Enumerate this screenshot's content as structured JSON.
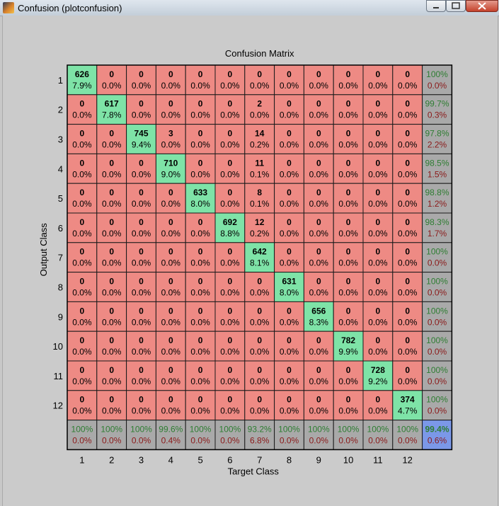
{
  "window": {
    "title": "Confusion (plotconfusion)",
    "buttons": [
      "minimize",
      "maximize",
      "close"
    ]
  },
  "colors": {
    "correct": "#7ee3a7",
    "incorrect": "#ee8a84",
    "summary": "#a9a9a9",
    "overall": "#7b98e8",
    "summary_good_text": "#2e7d32",
    "summary_bad_text": "#8b1a1a",
    "figure_bg": "#cbcbcb"
  },
  "chart_data": {
    "type": "heatmap",
    "title": "Confusion Matrix",
    "xlabel": "Target Class",
    "ylabel": "Output Class",
    "x_tick_labels": [
      "1",
      "2",
      "3",
      "4",
      "5",
      "6",
      "7",
      "8",
      "9",
      "10",
      "11",
      "12"
    ],
    "y_tick_labels": [
      "1",
      "2",
      "3",
      "4",
      "5",
      "6",
      "7",
      "8",
      "9",
      "10",
      "11",
      "12"
    ],
    "counts": [
      [
        626,
        0,
        0,
        0,
        0,
        0,
        0,
        0,
        0,
        0,
        0,
        0
      ],
      [
        0,
        617,
        0,
        0,
        0,
        0,
        2,
        0,
        0,
        0,
        0,
        0
      ],
      [
        0,
        0,
        745,
        3,
        0,
        0,
        14,
        0,
        0,
        0,
        0,
        0
      ],
      [
        0,
        0,
        0,
        710,
        0,
        0,
        11,
        0,
        0,
        0,
        0,
        0
      ],
      [
        0,
        0,
        0,
        0,
        633,
        0,
        8,
        0,
        0,
        0,
        0,
        0
      ],
      [
        0,
        0,
        0,
        0,
        0,
        692,
        12,
        0,
        0,
        0,
        0,
        0
      ],
      [
        0,
        0,
        0,
        0,
        0,
        0,
        642,
        0,
        0,
        0,
        0,
        0
      ],
      [
        0,
        0,
        0,
        0,
        0,
        0,
        0,
        631,
        0,
        0,
        0,
        0
      ],
      [
        0,
        0,
        0,
        0,
        0,
        0,
        0,
        0,
        656,
        0,
        0,
        0
      ],
      [
        0,
        0,
        0,
        0,
        0,
        0,
        0,
        0,
        0,
        782,
        0,
        0
      ],
      [
        0,
        0,
        0,
        0,
        0,
        0,
        0,
        0,
        0,
        0,
        728,
        0
      ],
      [
        0,
        0,
        0,
        0,
        0,
        0,
        0,
        0,
        0,
        0,
        0,
        374
      ]
    ],
    "percents": [
      [
        "7.9%",
        "0.0%",
        "0.0%",
        "0.0%",
        "0.0%",
        "0.0%",
        "0.0%",
        "0.0%",
        "0.0%",
        "0.0%",
        "0.0%",
        "0.0%"
      ],
      [
        "0.0%",
        "7.8%",
        "0.0%",
        "0.0%",
        "0.0%",
        "0.0%",
        "0.0%",
        "0.0%",
        "0.0%",
        "0.0%",
        "0.0%",
        "0.0%"
      ],
      [
        "0.0%",
        "0.0%",
        "9.4%",
        "0.0%",
        "0.0%",
        "0.0%",
        "0.2%",
        "0.0%",
        "0.0%",
        "0.0%",
        "0.0%",
        "0.0%"
      ],
      [
        "0.0%",
        "0.0%",
        "0.0%",
        "9.0%",
        "0.0%",
        "0.0%",
        "0.1%",
        "0.0%",
        "0.0%",
        "0.0%",
        "0.0%",
        "0.0%"
      ],
      [
        "0.0%",
        "0.0%",
        "0.0%",
        "0.0%",
        "8.0%",
        "0.0%",
        "0.1%",
        "0.0%",
        "0.0%",
        "0.0%",
        "0.0%",
        "0.0%"
      ],
      [
        "0.0%",
        "0.0%",
        "0.0%",
        "0.0%",
        "0.0%",
        "8.8%",
        "0.2%",
        "0.0%",
        "0.0%",
        "0.0%",
        "0.0%",
        "0.0%"
      ],
      [
        "0.0%",
        "0.0%",
        "0.0%",
        "0.0%",
        "0.0%",
        "0.0%",
        "8.1%",
        "0.0%",
        "0.0%",
        "0.0%",
        "0.0%",
        "0.0%"
      ],
      [
        "0.0%",
        "0.0%",
        "0.0%",
        "0.0%",
        "0.0%",
        "0.0%",
        "0.0%",
        "8.0%",
        "0.0%",
        "0.0%",
        "0.0%",
        "0.0%"
      ],
      [
        "0.0%",
        "0.0%",
        "0.0%",
        "0.0%",
        "0.0%",
        "0.0%",
        "0.0%",
        "0.0%",
        "8.3%",
        "0.0%",
        "0.0%",
        "0.0%"
      ],
      [
        "0.0%",
        "0.0%",
        "0.0%",
        "0.0%",
        "0.0%",
        "0.0%",
        "0.0%",
        "0.0%",
        "0.0%",
        "9.9%",
        "0.0%",
        "0.0%"
      ],
      [
        "0.0%",
        "0.0%",
        "0.0%",
        "0.0%",
        "0.0%",
        "0.0%",
        "0.0%",
        "0.0%",
        "0.0%",
        "0.0%",
        "9.2%",
        "0.0%"
      ],
      [
        "0.0%",
        "0.0%",
        "0.0%",
        "0.0%",
        "0.0%",
        "0.0%",
        "0.0%",
        "0.0%",
        "0.0%",
        "0.0%",
        "0.0%",
        "4.7%"
      ]
    ],
    "row_summary": [
      [
        "100%",
        "0.0%"
      ],
      [
        "99.7%",
        "0.3%"
      ],
      [
        "97.8%",
        "2.2%"
      ],
      [
        "98.5%",
        "1.5%"
      ],
      [
        "98.8%",
        "1.2%"
      ],
      [
        "98.3%",
        "1.7%"
      ],
      [
        "100%",
        "0.0%"
      ],
      [
        "100%",
        "0.0%"
      ],
      [
        "100%",
        "0.0%"
      ],
      [
        "100%",
        "0.0%"
      ],
      [
        "100%",
        "0.0%"
      ],
      [
        "100%",
        "0.0%"
      ]
    ],
    "col_summary": [
      [
        "100%",
        "0.0%"
      ],
      [
        "100%",
        "0.0%"
      ],
      [
        "100%",
        "0.0%"
      ],
      [
        "99.6%",
        "0.4%"
      ],
      [
        "100%",
        "0.0%"
      ],
      [
        "100%",
        "0.0%"
      ],
      [
        "93.2%",
        "6.8%"
      ],
      [
        "100%",
        "0.0%"
      ],
      [
        "100%",
        "0.0%"
      ],
      [
        "100%",
        "0.0%"
      ],
      [
        "100%",
        "0.0%"
      ],
      [
        "100%",
        "0.0%"
      ]
    ],
    "overall": [
      "99.4%",
      "0.6%"
    ]
  }
}
